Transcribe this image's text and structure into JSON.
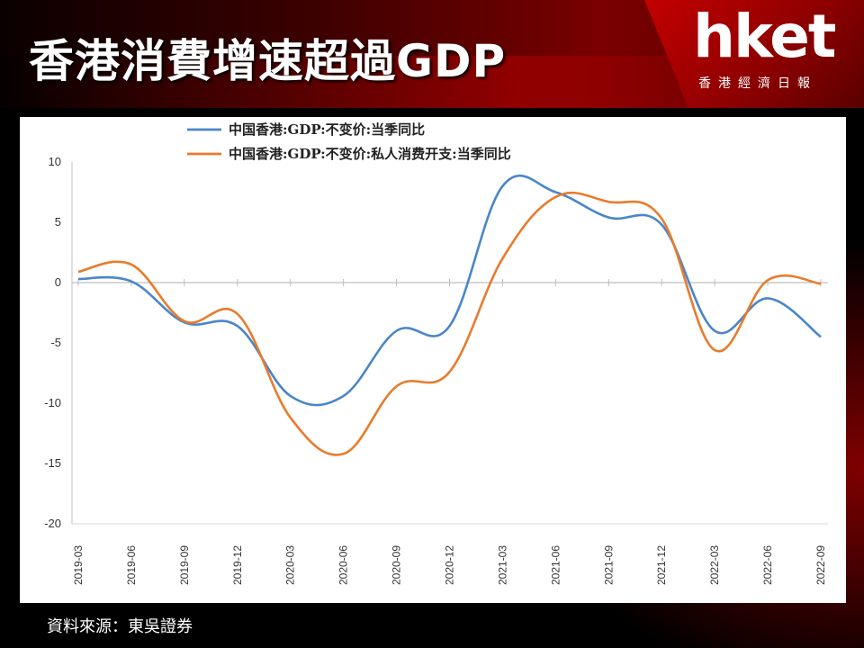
{
  "header": {
    "title": "香港消費增速超過GDP",
    "logo_text": "hket",
    "logo_subtitle": "香港經濟日報"
  },
  "footer": {
    "source": "資料來源：東吳證券"
  },
  "colors": {
    "gdp": "#4A86C8",
    "consumption": "#E87B2B",
    "accent_red": "#C40000"
  },
  "chart_data": {
    "type": "line",
    "title": "",
    "xlabel": "",
    "ylabel": "",
    "ylim": [
      -20,
      10
    ],
    "yticks": [
      10,
      5,
      0,
      -5,
      -10,
      -15,
      -20
    ],
    "grid": true,
    "legend_position": "top",
    "categories": [
      "2019-03",
      "2019-06",
      "2019-09",
      "2019-12",
      "2020-03",
      "2020-06",
      "2020-09",
      "2020-12",
      "2021-03",
      "2021-06",
      "2021-09",
      "2021-12",
      "2022-03",
      "2022-06",
      "2022-09"
    ],
    "series": [
      {
        "name": "中国香港:GDP:不变价:当季同比",
        "color": "#4A86C8",
        "values": [
          0.3,
          0.1,
          -3.3,
          -3.6,
          -9.4,
          -9.4,
          -4.0,
          -3.6,
          8.0,
          7.5,
          5.4,
          4.8,
          -4.0,
          -1.3,
          -4.5
        ]
      },
      {
        "name": "中国香港:GDP:不变价:私人消费开支:当季同比",
        "color": "#E87B2B",
        "values": [
          0.9,
          1.5,
          -3.2,
          -2.6,
          -11.2,
          -14.2,
          -8.6,
          -7.4,
          2.0,
          7.1,
          6.7,
          5.3,
          -5.6,
          0.2,
          -0.1
        ]
      }
    ]
  }
}
